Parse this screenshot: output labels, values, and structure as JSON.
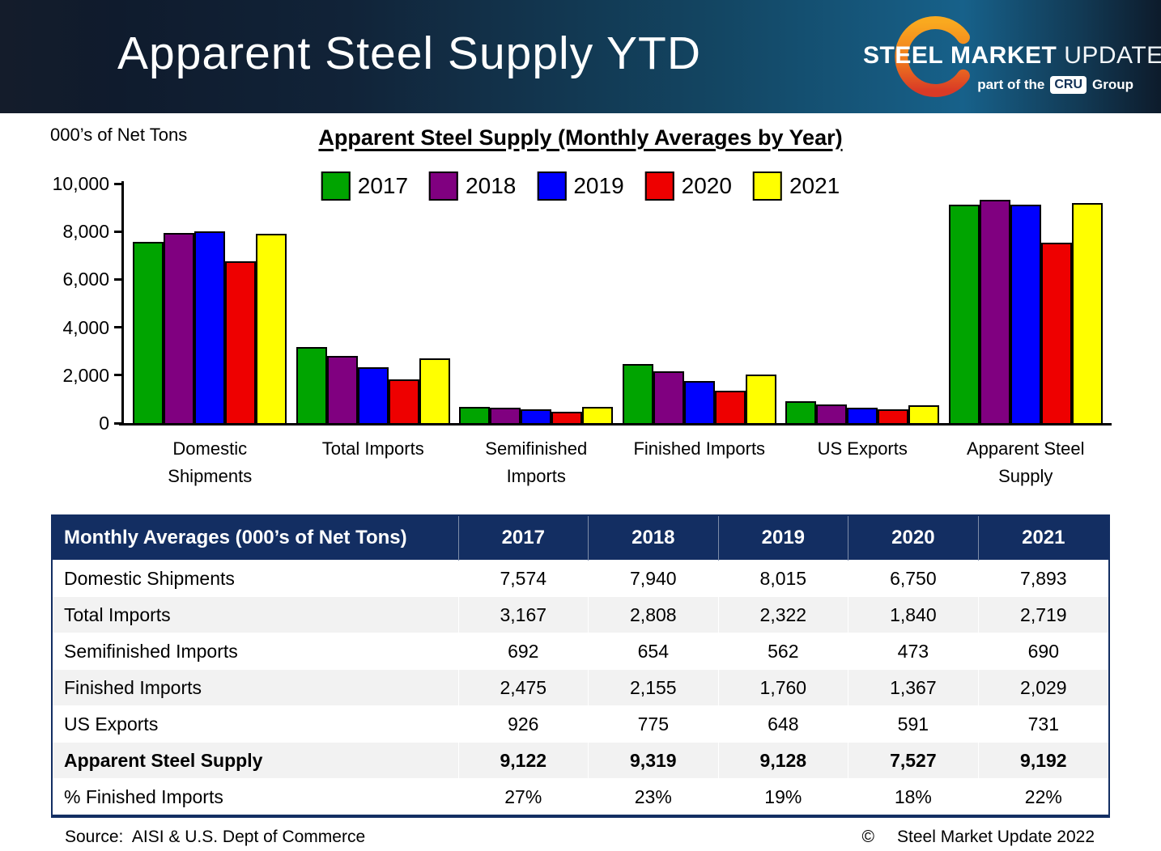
{
  "header": {
    "title": "Apparent Steel Supply YTD",
    "logo": {
      "steel": "STEEL",
      "market": "MARKET",
      "update": "UPDATE",
      "tagline_prefix": "part of the",
      "cru": "CRU",
      "group": "Group"
    }
  },
  "colors": {
    "table_header_navy": "#132e62",
    "banner_blue_mid": "#17618a",
    "logo_orange": "#f7a21c",
    "logo_red": "#da3b26"
  },
  "chart_data": {
    "type": "bar",
    "title": "Apparent Steel Supply (Monthly Averages by Year)",
    "ylabel": "000’s of Net Tons",
    "ylim": [
      0,
      10000
    ],
    "y_ticks": [
      "10,000",
      "8,000",
      "6,000",
      "4,000",
      "2,000",
      "0"
    ],
    "grid": false,
    "legend_position": "top-center",
    "categories": [
      "Domestic Shipments",
      "Total Imports",
      "Semifinished Imports",
      "Finished Imports",
      "US Exports",
      "Apparent Steel Supply"
    ],
    "series": [
      {
        "name": "2017",
        "color": "#00a400",
        "values": [
          7574,
          3167,
          692,
          2475,
          926,
          9122
        ]
      },
      {
        "name": "2018",
        "color": "#800080",
        "values": [
          7940,
          2808,
          654,
          2155,
          775,
          9319
        ]
      },
      {
        "name": "2019",
        "color": "#0000fe",
        "values": [
          8015,
          2322,
          562,
          1760,
          648,
          9128
        ]
      },
      {
        "name": "2020",
        "color": "#ee0000",
        "values": [
          6750,
          1840,
          473,
          1367,
          591,
          7527
        ]
      },
      {
        "name": "2021",
        "color": "#ffff00",
        "values": [
          7893,
          2719,
          690,
          2029,
          731,
          9192
        ]
      }
    ]
  },
  "table": {
    "header": [
      "Monthly Averages (000’s of Net Tons)",
      "2017",
      "2018",
      "2019",
      "2020",
      "2021"
    ],
    "rows": [
      {
        "label": "Domestic Shipments",
        "values": [
          "7,574",
          "7,940",
          "8,015",
          "6,750",
          "7,893"
        ],
        "bold": false
      },
      {
        "label": "Total Imports",
        "values": [
          "3,167",
          "2,808",
          "2,322",
          "1,840",
          "2,719"
        ],
        "bold": false
      },
      {
        "label": "Semifinished Imports",
        "values": [
          "692",
          "654",
          "562",
          "473",
          "690"
        ],
        "bold": false
      },
      {
        "label": "Finished Imports",
        "values": [
          "2,475",
          "2,155",
          "1,760",
          "1,367",
          "2,029"
        ],
        "bold": false
      },
      {
        "label": "US Exports",
        "values": [
          "926",
          "775",
          "648",
          "591",
          "731"
        ],
        "bold": false
      },
      {
        "label": "Apparent Steel Supply",
        "values": [
          "9,122",
          "9,319",
          "9,128",
          "7,527",
          "9,192"
        ],
        "bold": true
      },
      {
        "label": "% Finished Imports",
        "values": [
          "27%",
          "23%",
          "19%",
          "18%",
          "22%"
        ],
        "bold": false
      }
    ]
  },
  "footer": {
    "source": "Source:  AISI & U.S. Dept of Commerce",
    "copyright_symbol": "©",
    "copyright_text": "Steel Market Update 2022"
  }
}
